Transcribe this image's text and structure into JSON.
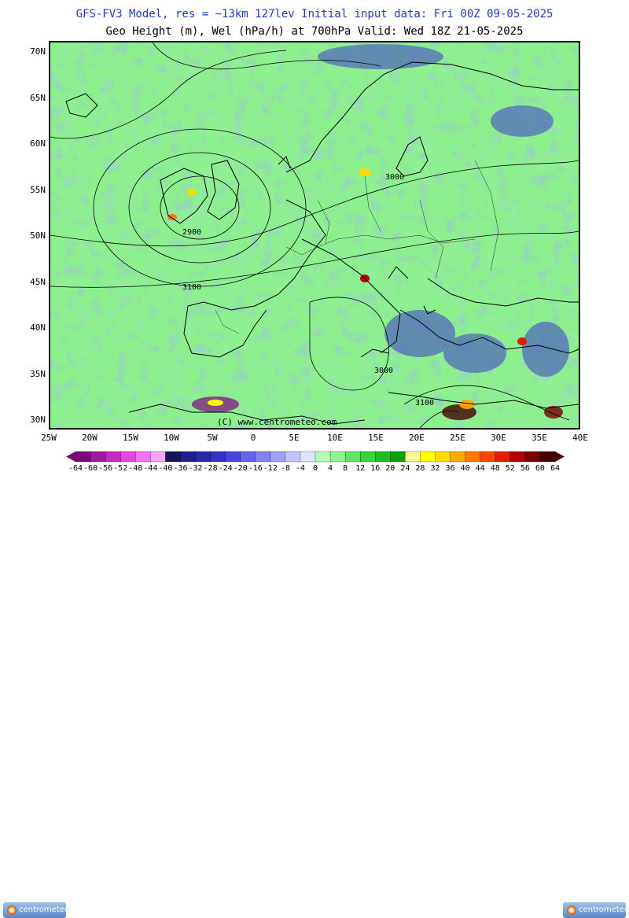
{
  "header": {
    "line1": "GFS-FV3 Model, res = ~13km 127lev    Initial input data: Fri 00Z 09-05-2025",
    "line2": "Geo Height (m), Wel (hPa/h) at 700hPa  Valid: Wed 18Z 21-05-2025"
  },
  "map": {
    "watermark": "(C) www.centrometeo.com",
    "contour_labels": [
      "2900",
      "3000",
      "3100",
      "3000",
      "3100"
    ],
    "lat_labels": [
      "70N",
      "65N",
      "60N",
      "55N",
      "50N",
      "45N",
      "40N",
      "35N",
      "30N"
    ],
    "lon_labels": [
      "25W",
      "20W",
      "15W",
      "10W",
      "5W",
      "0",
      "5E",
      "10E",
      "15E",
      "20E",
      "25E",
      "30E",
      "35E",
      "40E"
    ]
  },
  "colorbar": {
    "labels": [
      "-64",
      "-60",
      "-56",
      "-52",
      "-48",
      "-44",
      "-40",
      "-36",
      "-32",
      "-28",
      "-24",
      "-20",
      "-16",
      "-12",
      "-8",
      "-4",
      "0",
      "4",
      "8",
      "12",
      "16",
      "20",
      "24",
      "28",
      "32",
      "36",
      "40",
      "44",
      "48",
      "52",
      "56",
      "60",
      "64"
    ],
    "colors": [
      "#7a0a7a",
      "#a01aa0",
      "#c828c8",
      "#e646e6",
      "#f573f5",
      "#f9a3f9",
      "#14145a",
      "#1e1e8c",
      "#2828aa",
      "#3232c8",
      "#4646e1",
      "#6464f0",
      "#8282f5",
      "#a0a0fa",
      "#c3c3fd",
      "#e1e1ff",
      "#b4ffb4",
      "#8cf58c",
      "#64e664",
      "#3cd23c",
      "#1ebe1e",
      "#0aa00a",
      "#fafa96",
      "#ffff00",
      "#ffdc00",
      "#ffaa00",
      "#ff7800",
      "#ff4600",
      "#e11e00",
      "#b40000",
      "#780000",
      "#460000"
    ],
    "logo_text": "centrometeo"
  }
}
